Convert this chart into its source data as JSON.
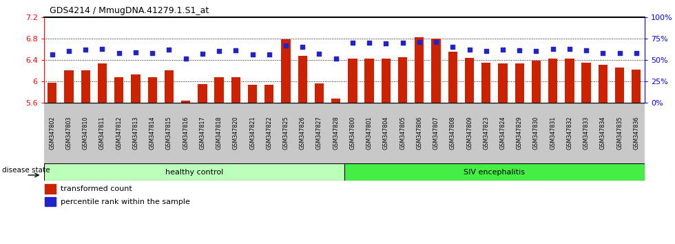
{
  "title": "GDS4214 / MmugDNA.41279.1.S1_at",
  "samples": [
    "GSM347802",
    "GSM347803",
    "GSM347810",
    "GSM347811",
    "GSM347812",
    "GSM347813",
    "GSM347814",
    "GSM347815",
    "GSM347816",
    "GSM347817",
    "GSM347818",
    "GSM347820",
    "GSM347821",
    "GSM347822",
    "GSM347825",
    "GSM347826",
    "GSM347827",
    "GSM347828",
    "GSM347800",
    "GSM347801",
    "GSM347804",
    "GSM347805",
    "GSM347806",
    "GSM347807",
    "GSM347808",
    "GSM347809",
    "GSM347823",
    "GSM347824",
    "GSM347829",
    "GSM347830",
    "GSM347831",
    "GSM347832",
    "GSM347833",
    "GSM347834",
    "GSM347835",
    "GSM347836"
  ],
  "bar_values": [
    5.97,
    6.2,
    6.2,
    6.33,
    6.07,
    6.13,
    6.07,
    6.2,
    5.63,
    5.95,
    6.07,
    6.07,
    5.93,
    5.93,
    6.79,
    6.47,
    5.96,
    5.67,
    6.42,
    6.42,
    6.42,
    6.45,
    6.82,
    6.8,
    6.55,
    6.43,
    6.35,
    6.33,
    6.33,
    6.38,
    6.42,
    6.42,
    6.35,
    6.3,
    6.25,
    6.22
  ],
  "dot_values": [
    56,
    60,
    62,
    63,
    58,
    59,
    58,
    62,
    51,
    57,
    60,
    61,
    56,
    56,
    67,
    65,
    57,
    51,
    70,
    70,
    69,
    70,
    71,
    71,
    65,
    62,
    60,
    62,
    61,
    60,
    63,
    63,
    61,
    58,
    58,
    58
  ],
  "healthy_count": 18,
  "ymin": 5.6,
  "ymax": 7.2,
  "yticks_left": [
    5.6,
    6.0,
    6.4,
    6.8,
    7.2
  ],
  "ytick_labels_left": [
    "5.6",
    "6",
    "6.4",
    "6.8",
    "7.2"
  ],
  "yticks_right_pct": [
    0,
    25,
    50,
    75,
    100
  ],
  "ytick_labels_right": [
    "0%",
    "25%",
    "50%",
    "75%",
    "100%"
  ],
  "bar_color": "#cc2200",
  "dot_color": "#2222cc",
  "healthy_color": "#bbffbb",
  "siv_color": "#44ee44",
  "healthy_label": "healthy control",
  "siv_label": "SIV encephalitis",
  "disease_state_label": "disease state",
  "legend_bar_label": "transformed count",
  "legend_dot_label": "percentile rank within the sample",
  "tick_bg_color": "#c8c8c8"
}
